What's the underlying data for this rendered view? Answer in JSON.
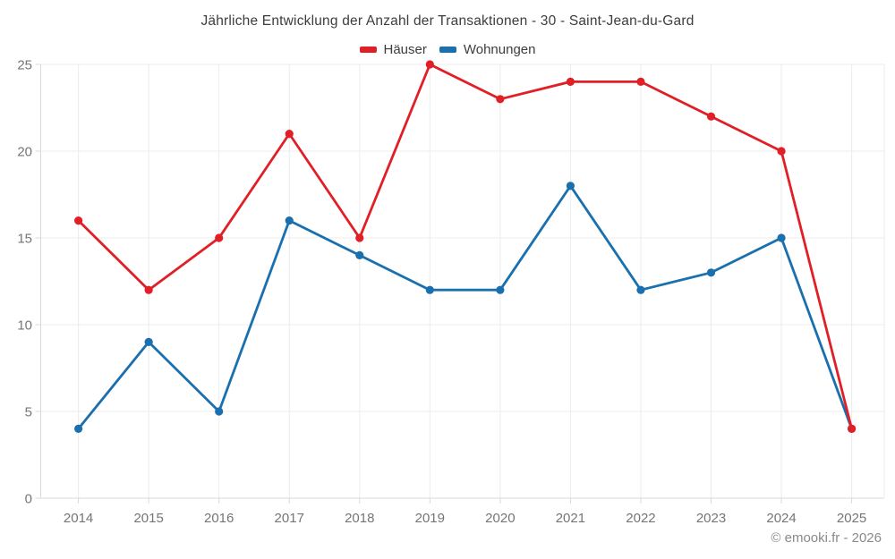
{
  "chart_data": {
    "type": "line",
    "title": "Jährliche Entwicklung der Anzahl der Transaktionen - 30 - Saint-Jean-du-Gard",
    "categories": [
      "2014",
      "2015",
      "2016",
      "2017",
      "2018",
      "2019",
      "2020",
      "2021",
      "2022",
      "2023",
      "2024",
      "2025"
    ],
    "series": [
      {
        "name": "Häuser",
        "color": "#e01f26",
        "values": [
          16,
          12,
          15,
          21,
          15,
          25,
          23,
          24,
          24,
          22,
          20,
          4
        ]
      },
      {
        "name": "Wohnungen",
        "color": "#1a6fae",
        "values": [
          4,
          9,
          5,
          16,
          14,
          12,
          12,
          18,
          12,
          13,
          15,
          4
        ]
      }
    ],
    "xlabel": "",
    "ylabel": "",
    "ylim": [
      0,
      25
    ],
    "yticks": [
      0,
      5,
      10,
      15,
      20,
      25
    ],
    "grid": true,
    "legend_position": "top",
    "annotation": "© emooki.fr - 2026"
  },
  "theme": {
    "grid_color": "#ececec",
    "axis_color": "#d9d9d9",
    "tick_label_color": "#757575",
    "title_color": "#3d3d3d",
    "footer_color": "#8a8a8a",
    "background": "#ffffff"
  }
}
